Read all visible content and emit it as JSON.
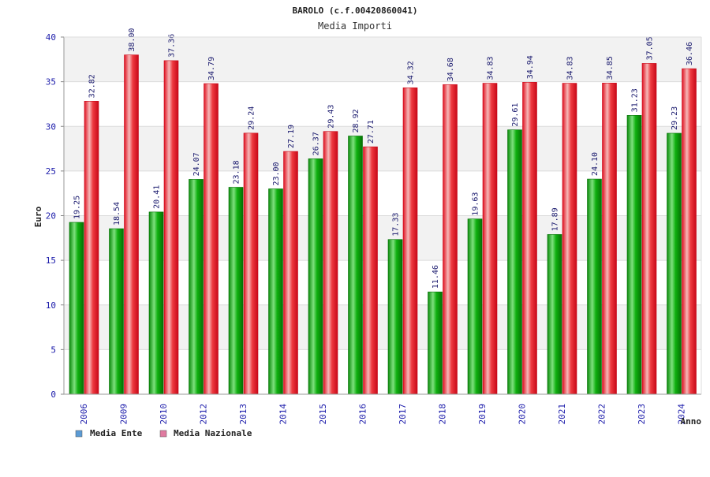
{
  "colors": {
    "ente": "#0aa00a",
    "nazionale": "#e8202a",
    "legend_ente": "#5b9bd5",
    "legend_nazionale": "#e07aa0",
    "band": "#f2f2f2",
    "tick_text": "#1a1aaa"
  },
  "chart_data": {
    "type": "bar",
    "title": "BAROLO (c.f.00420860041)",
    "subtitle": "Media Importi",
    "xlabel": "Anno",
    "ylabel": "Euro",
    "ylim": [
      0,
      40
    ],
    "yticks": [
      0,
      5,
      10,
      15,
      20,
      25,
      30,
      35,
      40
    ],
    "grid": true,
    "legend_position": "bottom-left",
    "categories": [
      "2006",
      "2009",
      "2010",
      "2012",
      "2013",
      "2014",
      "2015",
      "2016",
      "2017",
      "2018",
      "2019",
      "2020",
      "2021",
      "2022",
      "2023",
      "2024"
    ],
    "series": [
      {
        "name": "Media Ente",
        "values": [
          19.25,
          18.54,
          20.41,
          24.07,
          23.18,
          23.0,
          26.37,
          28.92,
          17.33,
          11.46,
          19.63,
          29.61,
          17.89,
          24.1,
          31.23,
          29.23
        ],
        "labels": [
          "19.25",
          "18.54",
          "20.41",
          "24.07",
          "23.18",
          "23.00",
          "26.37",
          "28.92",
          "17.33",
          "11.46",
          "19.63",
          "29.61",
          "17.89",
          "24.10",
          "31.23",
          "29.23"
        ]
      },
      {
        "name": "Media Nazionale",
        "values": [
          32.82,
          38.0,
          37.36,
          34.79,
          29.24,
          27.19,
          29.43,
          27.71,
          34.32,
          34.68,
          34.83,
          34.94,
          34.83,
          34.85,
          37.05,
          36.46
        ],
        "labels": [
          "32.82",
          "38.00",
          "37.36",
          "34.79",
          "29.24",
          "27.19",
          "29.43",
          "27.71",
          "34.32",
          "34.68",
          "34.83",
          "34.94",
          "34.83",
          "34.85",
          "37.05",
          "36.46"
        ]
      }
    ]
  }
}
